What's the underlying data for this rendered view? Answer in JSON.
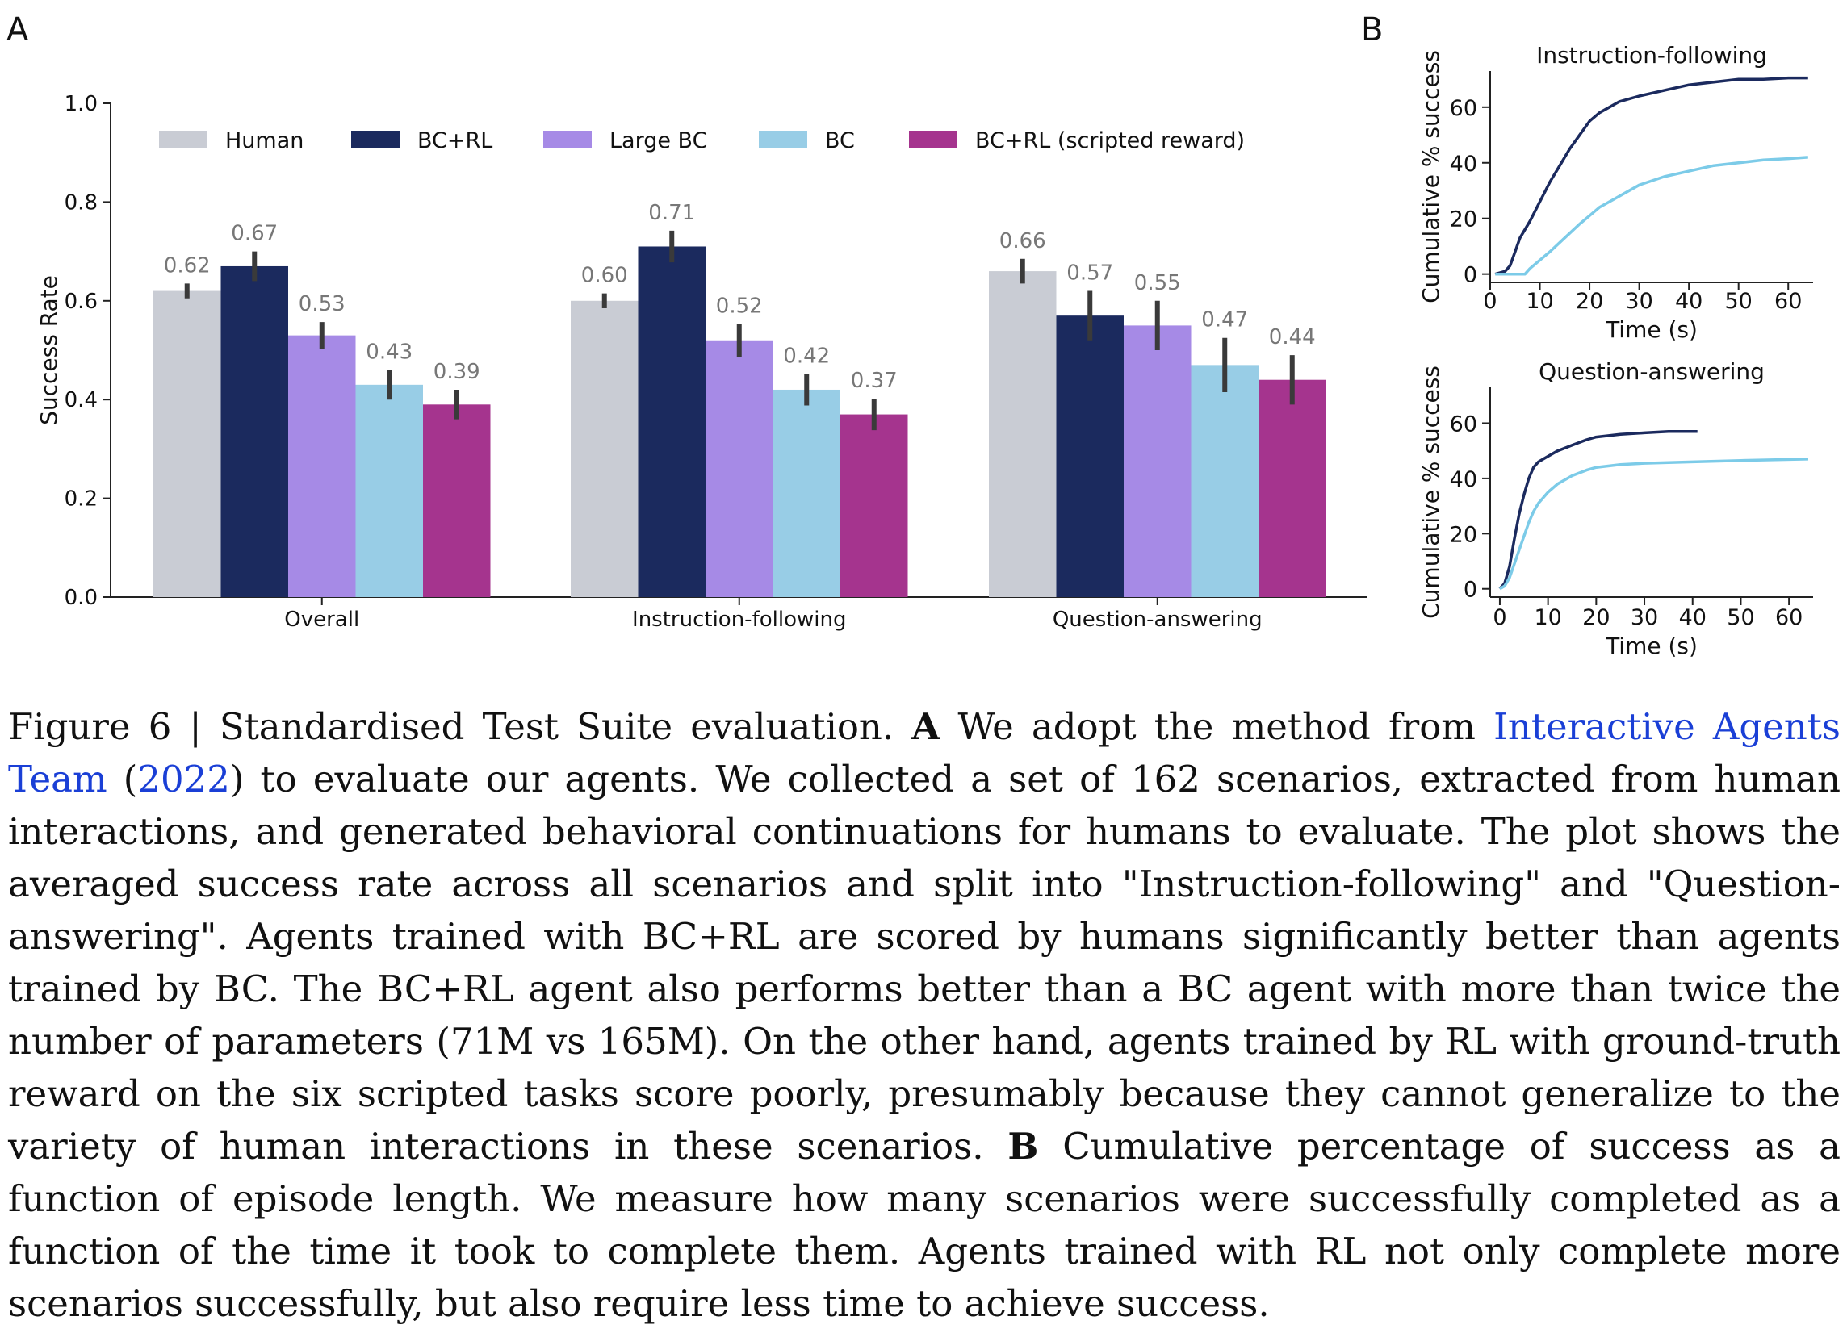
{
  "panel_a_letter": "A",
  "panel_b_letter": "B",
  "chart_data": [
    {
      "type": "bar",
      "panel": "A",
      "ylabel": "Success Rate",
      "xlabel": "",
      "ylim": [
        0,
        1.0
      ],
      "yticks": [
        "0.0",
        "0.2",
        "0.4",
        "0.6",
        "0.8",
        "1.0"
      ],
      "categories": [
        "Overall",
        "Instruction-following",
        "Question-answering"
      ],
      "legend_position": "top",
      "series": [
        {
          "name": "Human",
          "color": "#c9ccd4",
          "values": [
            0.62,
            0.6,
            0.66
          ],
          "labels": [
            "0.62",
            "0.60",
            "0.66"
          ],
          "err": [
            0.015,
            0.015,
            0.025
          ]
        },
        {
          "name": "BC+RL",
          "color": "#1b2a5e",
          "values": [
            0.67,
            0.71,
            0.57
          ],
          "labels": [
            "0.67",
            "0.71",
            "0.57"
          ],
          "err": [
            0.03,
            0.032,
            0.05
          ]
        },
        {
          "name": "Large BC",
          "color": "#a68ae6",
          "values": [
            0.53,
            0.52,
            0.55
          ],
          "labels": [
            "0.53",
            "0.52",
            "0.55"
          ],
          "err": [
            0.027,
            0.033,
            0.05
          ]
        },
        {
          "name": "BC",
          "color": "#98cde6",
          "values": [
            0.43,
            0.42,
            0.47
          ],
          "labels": [
            "0.43",
            "0.42",
            "0.47"
          ],
          "err": [
            0.03,
            0.032,
            0.055
          ]
        },
        {
          "name": "BC+RL (scripted reward)",
          "color": "#a5348e",
          "values": [
            0.39,
            0.37,
            0.44
          ],
          "labels": [
            "0.39",
            "0.37",
            "0.44"
          ],
          "err": [
            0.03,
            0.032,
            0.05
          ]
        }
      ]
    },
    {
      "type": "line",
      "panel": "B",
      "title": "Instruction-following",
      "xlabel": "Time (s)",
      "ylabel": "Cumulative % success",
      "xlim": [
        0,
        65
      ],
      "ylim": [
        -3,
        73
      ],
      "xticks": [
        0,
        10,
        20,
        30,
        40,
        50,
        60
      ],
      "yticks": [
        0,
        20,
        40,
        60
      ],
      "series": [
        {
          "color": "#1b2a5e",
          "x": [
            1,
            3,
            4,
            5,
            6,
            8,
            10,
            12,
            14,
            16,
            18,
            20,
            22,
            24,
            26,
            30,
            35,
            40,
            45,
            50,
            55,
            60,
            64
          ],
          "y": [
            0,
            1,
            3,
            8,
            13,
            19,
            26,
            33,
            39,
            45,
            50,
            55,
            58,
            60,
            62,
            64,
            66,
            68,
            69,
            70,
            70,
            70.5,
            70.5
          ]
        },
        {
          "color": "#7ccbe8",
          "x": [
            1,
            7,
            8,
            10,
            12,
            15,
            18,
            20,
            22,
            25,
            28,
            30,
            35,
            40,
            45,
            50,
            55,
            60,
            64
          ],
          "y": [
            0,
            0,
            2,
            5,
            8,
            13,
            18,
            21,
            24,
            27,
            30,
            32,
            35,
            37,
            39,
            40,
            41,
            41.5,
            42
          ]
        }
      ]
    },
    {
      "type": "line",
      "panel": "B",
      "title": "Question-answering",
      "xlabel": "Time (s)",
      "ylabel": "Cumulative % success",
      "xlim": [
        -2,
        65
      ],
      "ylim": [
        -3,
        73
      ],
      "xticks": [
        0,
        10,
        20,
        30,
        40,
        50,
        60
      ],
      "yticks": [
        0,
        20,
        40,
        60
      ],
      "series": [
        {
          "color": "#1b2a5e",
          "x": [
            0,
            1,
            2,
            3,
            4,
            5,
            6,
            7,
            8,
            10,
            12,
            15,
            18,
            20,
            25,
            30,
            35,
            41
          ],
          "y": [
            0,
            2,
            8,
            18,
            27,
            34,
            40,
            44,
            46,
            48,
            50,
            52,
            54,
            55,
            56,
            56.5,
            57,
            57
          ]
        },
        {
          "color": "#7ccbe8",
          "x": [
            0,
            1,
            2,
            3,
            4,
            5,
            6,
            7,
            8,
            10,
            12,
            15,
            18,
            20,
            25,
            30,
            40,
            50,
            64
          ],
          "y": [
            0,
            1,
            4,
            9,
            14,
            19,
            24,
            28,
            31,
            35,
            38,
            41,
            43,
            44,
            45,
            45.5,
            46,
            46.5,
            47
          ]
        }
      ]
    }
  ],
  "caption": {
    "fig_label": "Figure 6 | Standardised Test Suite evaluation. ",
    "a_bold": "A",
    "part1": " We adopt the method from ",
    "link1": "Interactive Agents Team",
    "part2": " (",
    "link2": "2022",
    "part3": ") to evaluate our agents. We collected a set of 162 scenarios, extracted from human interactions, and generated behavioral continuations for humans to evaluate. The plot shows the averaged success rate across all scenarios and split into \"Instruction-following\" and \"Question-answering\".  Agents trained with BC+RL are scored by humans significantly better than agents trained by BC. The BC+RL agent also performs better than a BC agent with more than twice the number of parameters (71M vs 165M). On the other hand, agents trained by RL with ground-truth reward on the six scripted tasks score poorly, presumably because they cannot generalize to the variety of human interactions in these scenarios. ",
    "b_bold": "B",
    "part4": " Cumulative percentage of success as a function of episode length. We measure how many scenarios were successfully completed as a function of the time it took to complete them. Agents trained with RL not only complete more scenarios successfully, but also require less time to achieve success."
  }
}
